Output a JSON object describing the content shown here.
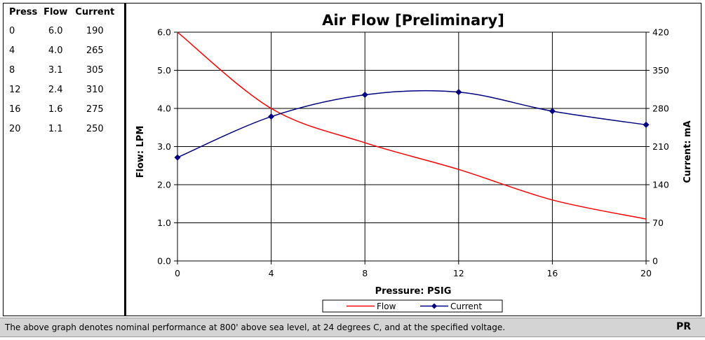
{
  "table": {
    "headers": [
      "Press",
      "Flow",
      "Current"
    ],
    "rows": [
      [
        "0",
        "6.0",
        "190"
      ],
      [
        "4",
        "4.0",
        "265"
      ],
      [
        "8",
        "3.1",
        "305"
      ],
      [
        "12",
        "2.4",
        "310"
      ],
      [
        "16",
        "1.6",
        "275"
      ],
      [
        "20",
        "1.1",
        "250"
      ]
    ]
  },
  "chart_data": {
    "type": "line",
    "title": "Air Flow [Preliminary]",
    "xlabel": "Pressure: PSIG",
    "ylabel": "Flow: LPM",
    "y2label": "Current: mA",
    "xlim": [
      0,
      20
    ],
    "ylim": [
      0,
      6
    ],
    "y2lim": [
      0,
      420
    ],
    "xticks": [
      "0",
      "4",
      "8",
      "12",
      "16",
      "20"
    ],
    "yticks": [
      "0.0",
      "1.0",
      "2.0",
      "3.0",
      "4.0",
      "5.0",
      "6.0"
    ],
    "y2ticks": [
      "0",
      "70",
      "140",
      "210",
      "280",
      "350",
      "420"
    ],
    "grid": true,
    "legend_position": "bottom",
    "series": [
      {
        "name": "Flow",
        "axis": "left",
        "color": "#ff0000",
        "marker": "none",
        "x": [
          0,
          4,
          8,
          12,
          16,
          20
        ],
        "values": [
          6.0,
          4.0,
          3.1,
          2.4,
          1.6,
          1.1
        ]
      },
      {
        "name": "Current",
        "axis": "right",
        "color": "#000080",
        "marker": "diamond",
        "x": [
          0,
          4,
          8,
          12,
          16,
          20
        ],
        "values": [
          190,
          265,
          305,
          310,
          275,
          250
        ]
      }
    ]
  },
  "footer": {
    "note": "The above graph denotes nominal performance at 800' above sea level, at 24 degrees C, and at the specified voltage.",
    "code": "PR"
  }
}
